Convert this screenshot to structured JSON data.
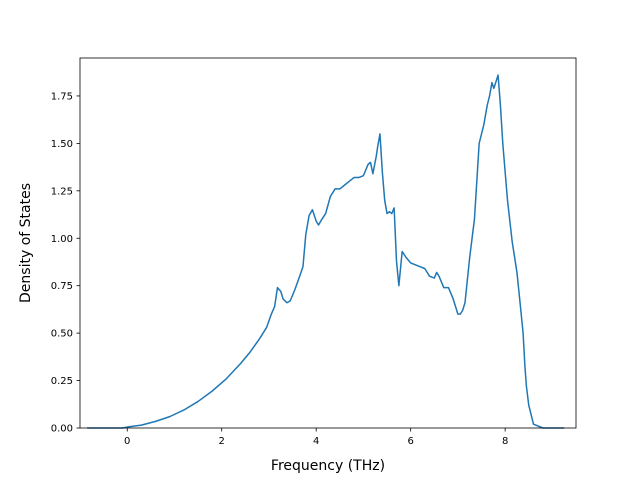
{
  "chart_data": {
    "type": "line",
    "title": "",
    "xlabel": "Frequency (THz)",
    "ylabel": "Density of States",
    "xlim": [
      -1.0,
      9.5
    ],
    "ylim": [
      0.0,
      1.95
    ],
    "xticks": [
      0,
      2,
      4,
      6,
      8
    ],
    "xtick_labels": [
      "0",
      "2",
      "4",
      "6",
      "8"
    ],
    "yticks": [
      0.0,
      0.25,
      0.5,
      0.75,
      1.0,
      1.25,
      1.5,
      1.75
    ],
    "ytick_labels": [
      "0.00",
      "0.25",
      "0.50",
      "0.75",
      "1.00",
      "1.25",
      "1.50",
      "1.75"
    ],
    "grid": false,
    "series": [
      {
        "color": "#1f77b4",
        "x": [
          -0.85,
          -0.5,
          -0.1,
          0.0,
          0.3,
          0.6,
          0.9,
          1.2,
          1.5,
          1.8,
          2.1,
          2.4,
          2.6,
          2.8,
          2.95,
          3.05,
          3.12,
          3.18,
          3.25,
          3.3,
          3.38,
          3.45,
          3.55,
          3.65,
          3.72,
          3.78,
          3.85,
          3.92,
          4.0,
          4.05,
          4.12,
          4.2,
          4.3,
          4.4,
          4.5,
          4.6,
          4.7,
          4.8,
          4.9,
          5.0,
          5.05,
          5.1,
          5.15,
          5.2,
          5.27,
          5.3,
          5.35,
          5.4,
          5.45,
          5.5,
          5.55,
          5.6,
          5.65,
          5.7,
          5.75,
          5.82,
          5.9,
          6.0,
          6.1,
          6.2,
          6.3,
          6.4,
          6.5,
          6.55,
          6.6,
          6.7,
          6.8,
          6.9,
          7.0,
          7.05,
          7.1,
          7.15,
          7.25,
          7.35,
          7.45,
          7.55,
          7.62,
          7.67,
          7.72,
          7.76,
          7.8,
          7.85,
          7.9,
          7.95,
          8.05,
          8.15,
          8.25,
          8.32,
          8.38,
          8.42,
          8.45,
          8.5,
          8.6,
          8.8,
          9.0,
          9.25
        ],
        "y": [
          0.0,
          0.0,
          0.0,
          0.005,
          0.015,
          0.035,
          0.06,
          0.095,
          0.14,
          0.195,
          0.26,
          0.34,
          0.4,
          0.47,
          0.53,
          0.6,
          0.64,
          0.74,
          0.72,
          0.68,
          0.66,
          0.67,
          0.73,
          0.8,
          0.85,
          1.02,
          1.12,
          1.15,
          1.09,
          1.07,
          1.1,
          1.13,
          1.22,
          1.26,
          1.26,
          1.28,
          1.3,
          1.32,
          1.32,
          1.33,
          1.36,
          1.39,
          1.4,
          1.34,
          1.43,
          1.48,
          1.55,
          1.35,
          1.2,
          1.13,
          1.14,
          1.13,
          1.16,
          0.88,
          0.75,
          0.93,
          0.9,
          0.87,
          0.86,
          0.85,
          0.84,
          0.8,
          0.79,
          0.82,
          0.8,
          0.74,
          0.74,
          0.68,
          0.6,
          0.6,
          0.62,
          0.66,
          0.9,
          1.1,
          1.5,
          1.6,
          1.7,
          1.75,
          1.82,
          1.79,
          1.82,
          1.86,
          1.7,
          1.5,
          1.2,
          0.98,
          0.82,
          0.65,
          0.5,
          0.32,
          0.22,
          0.12,
          0.02,
          0.0,
          0.0,
          0.0
        ]
      }
    ]
  }
}
